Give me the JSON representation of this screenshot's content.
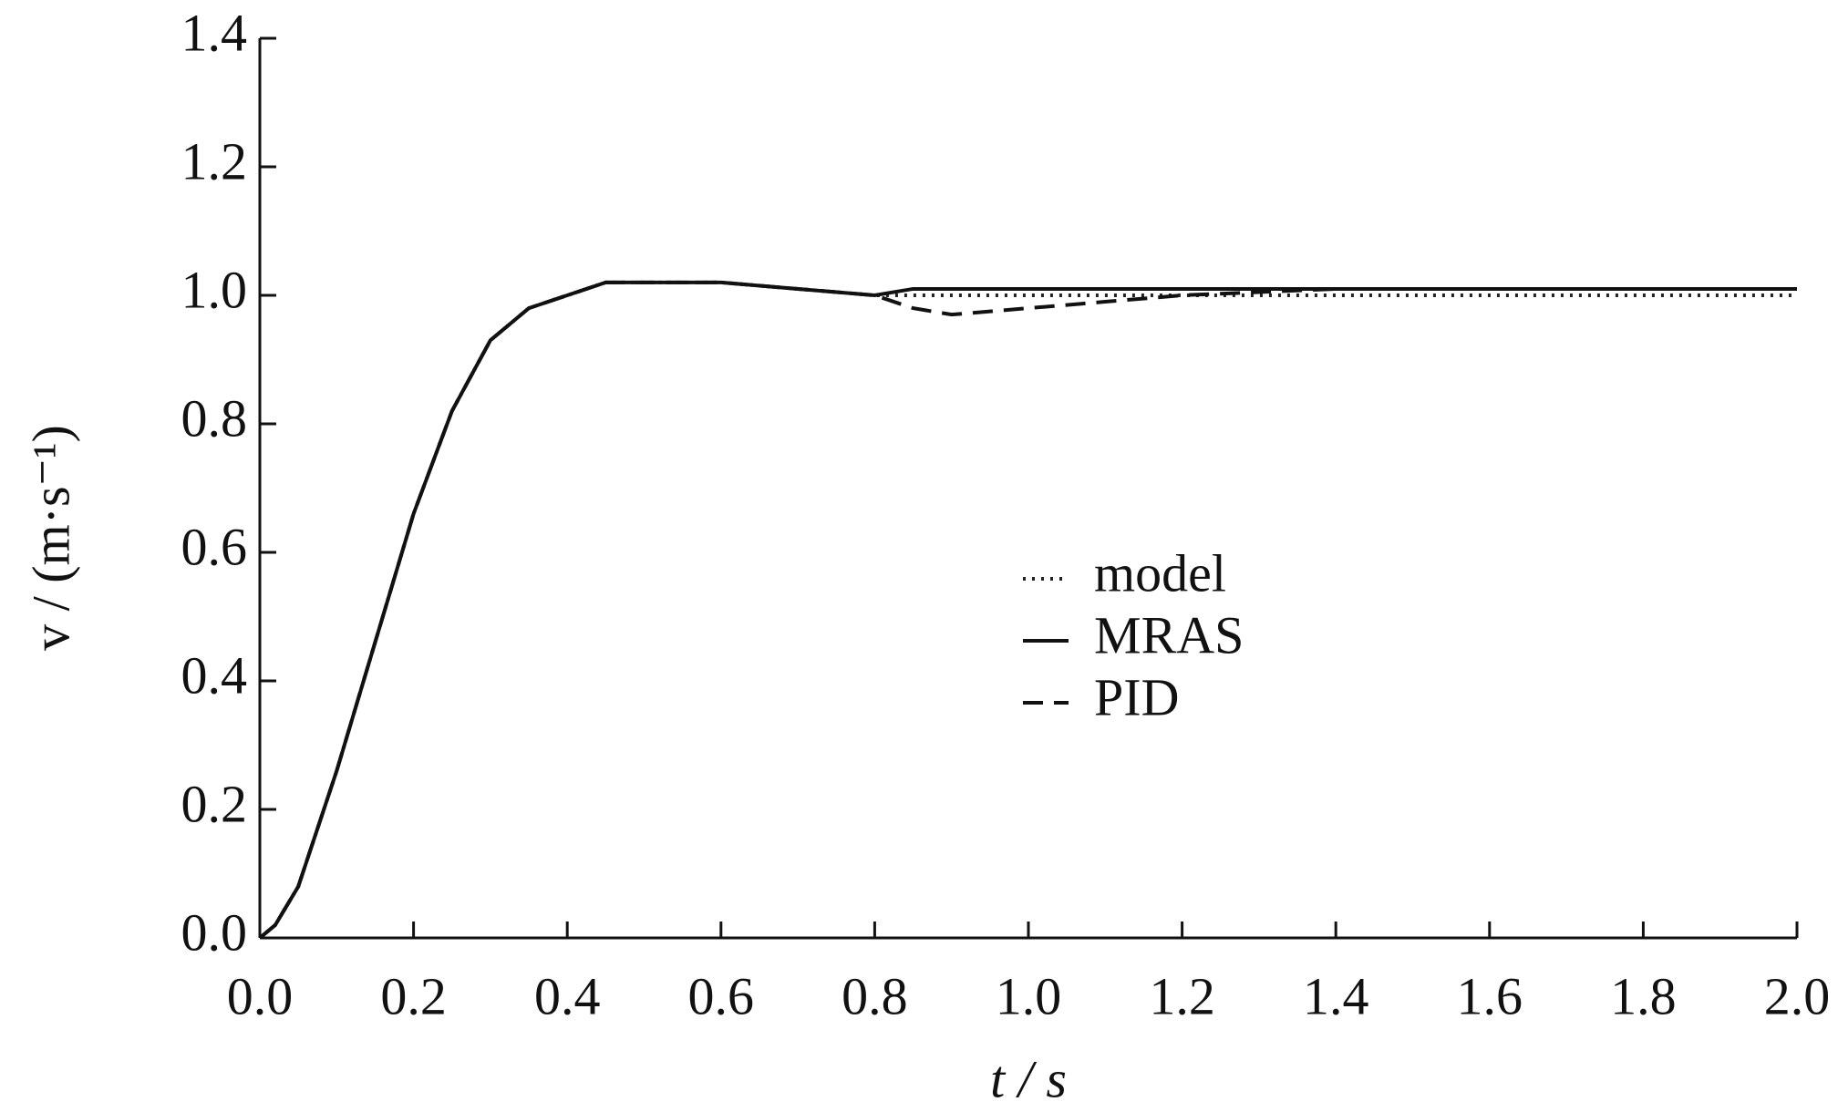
{
  "chart_data": {
    "type": "line",
    "xlabel": "t / s",
    "ylabel": "v / (m·s⁻¹)",
    "x": [
      0,
      0.02,
      0.05,
      0.1,
      0.15,
      0.2,
      0.25,
      0.3,
      0.35,
      0.4,
      0.45,
      0.5,
      0.6,
      0.7,
      0.8,
      0.85,
      0.9,
      1.0,
      1.1,
      1.2,
      1.4,
      1.6,
      1.8,
      2.0
    ],
    "series": [
      {
        "name": "model",
        "color": "#222",
        "dash": "dotted",
        "values": [
          0,
          0.02,
          0.08,
          0.26,
          0.46,
          0.66,
          0.82,
          0.93,
          0.98,
          1.0,
          1.02,
          1.02,
          1.02,
          1.01,
          1.0,
          1.0,
          1.0,
          1.0,
          1.0,
          1.0,
          1.0,
          1.0,
          1.0,
          1.0
        ]
      },
      {
        "name": "MRAS",
        "color": "#111",
        "dash": "solid",
        "values": [
          0,
          0.02,
          0.08,
          0.26,
          0.46,
          0.66,
          0.82,
          0.93,
          0.98,
          1.0,
          1.02,
          1.02,
          1.02,
          1.01,
          1.0,
          1.01,
          1.01,
          1.01,
          1.01,
          1.01,
          1.01,
          1.01,
          1.01,
          1.01
        ]
      },
      {
        "name": "PID",
        "color": "#111",
        "dash": "dashed",
        "values": [
          0,
          0.02,
          0.08,
          0.26,
          0.46,
          0.66,
          0.82,
          0.93,
          0.98,
          1.0,
          1.02,
          1.02,
          1.02,
          1.01,
          1.0,
          0.98,
          0.97,
          0.98,
          0.99,
          1.0,
          1.01,
          1.01,
          1.01,
          1.01
        ]
      }
    ],
    "xlim": [
      0,
      2.0
    ],
    "ylim": [
      0,
      1.4
    ],
    "xticks": [
      {
        "value": 0,
        "label": "0.0"
      },
      {
        "value": 0.2,
        "label": "0.2"
      },
      {
        "value": 0.4,
        "label": "0.4"
      },
      {
        "value": 0.6,
        "label": "0.6"
      },
      {
        "value": 0.8,
        "label": "0.8"
      },
      {
        "value": 1.0,
        "label": "1.0"
      },
      {
        "value": 1.2,
        "label": "1.2"
      },
      {
        "value": 1.4,
        "label": "1.4"
      },
      {
        "value": 1.6,
        "label": "1.6"
      },
      {
        "value": 1.8,
        "label": "1.8"
      },
      {
        "value": 2.0,
        "label": "2.0"
      }
    ],
    "yticks": [
      {
        "value": 0,
        "label": "0.0"
      },
      {
        "value": 0.2,
        "label": "0.2"
      },
      {
        "value": 0.4,
        "label": "0.4"
      },
      {
        "value": 0.6,
        "label": "0.6"
      },
      {
        "value": 0.8,
        "label": "0.8"
      },
      {
        "value": 1.0,
        "label": "1.0"
      },
      {
        "value": 1.2,
        "label": "1.2"
      },
      {
        "value": 1.4,
        "label": "1.4"
      }
    ],
    "grid": false
  }
}
